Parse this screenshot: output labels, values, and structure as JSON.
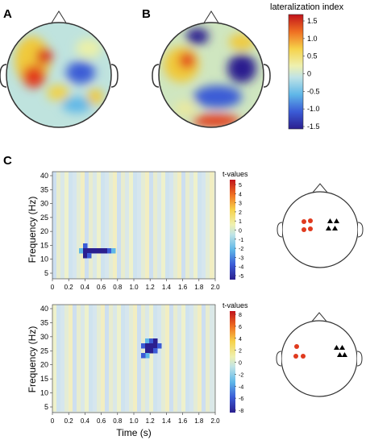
{
  "panels": {
    "a": "A",
    "b": "B",
    "c": "C"
  },
  "colorbar_top": {
    "title": "lateralization index",
    "ticks": [
      "1.5",
      "1.0",
      "0.5",
      "0",
      "-0.5",
      "-1.0",
      "-1.5"
    ]
  },
  "colorbar_mid": {
    "title": "t-values",
    "ticks": [
      "5",
      "4",
      "3",
      "2",
      "1",
      "0",
      "-1",
      "-2",
      "-3",
      "-4",
      "-5"
    ]
  },
  "colorbar_bottom": {
    "title": "t-values",
    "ticks": [
      "8",
      "6",
      "4",
      "2",
      "0",
      "-2",
      "-4",
      "-6",
      "-8"
    ]
  },
  "tf_axes": {
    "ylabel": "Frequency (Hz)",
    "xlabel": "Time (s)",
    "y_ticks": [
      "40",
      "35",
      "30",
      "25",
      "20",
      "15",
      "10",
      "5"
    ],
    "x_ticks": [
      "0",
      "0.2",
      "0.4",
      "0.6",
      "0.8",
      "1.0",
      "1.2",
      "1.4",
      "1.6",
      "1.8",
      "2.0"
    ]
  },
  "colors": {
    "left_marker": "#e03a1e",
    "right_marker": "#000000",
    "cluster": "#2b1f8f"
  }
}
